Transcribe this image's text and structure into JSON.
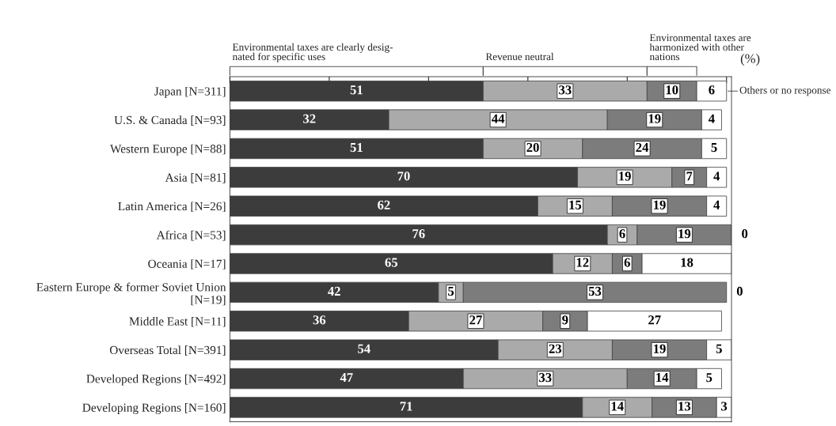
{
  "chart_data": {
    "type": "bar",
    "orientation": "horizontal",
    "stacked": true,
    "data_labels": true,
    "legend": false,
    "grid": false,
    "tick_labels": "y",
    "categories": [
      "Japan [N=311]",
      "U.S. & Canada [N=93]",
      "Western Europe [N=88]",
      "Asia [N=81]",
      "Latin America [N=26]",
      "Africa [N=53]",
      "Oceania [N=17]",
      "Eastern Europe & former Soviet Union\n[N=19]",
      "Middle East [N=11]",
      "Overseas Total [N=391]",
      "Developed Regions [N=492]",
      "Developing Regions [N=160]"
    ],
    "series": [
      {
        "name": "Environmental taxes are clearly desig-\nnated for specific uses",
        "color": "#3c3c3c",
        "values": [
          51,
          32,
          51,
          70,
          62,
          76,
          65,
          42,
          36,
          54,
          47,
          71
        ]
      },
      {
        "name": "Revenue neutral",
        "color": "#aaaaaa",
        "values": [
          33,
          44,
          20,
          19,
          15,
          6,
          12,
          5,
          27,
          23,
          33,
          14
        ]
      },
      {
        "name": "Environmental taxes are\nharmonized with other\nnations",
        "color": "#7c7c7c",
        "values": [
          10,
          19,
          24,
          7,
          19,
          19,
          6,
          53,
          9,
          19,
          14,
          13
        ]
      },
      {
        "name": "Others or no response",
        "color": "#ffffff",
        "values": [
          6,
          4,
          5,
          4,
          4,
          0,
          18,
          0,
          27,
          5,
          5,
          3
        ]
      }
    ],
    "xlim": [
      0,
      101
    ],
    "xticks": [
      {
        "value": 0,
        "label": null
      },
      {
        "value": 20,
        "label": null
      },
      {
        "value": 40,
        "label": null
      },
      {
        "value": 60,
        "label": null
      },
      {
        "value": 80,
        "label": null
      },
      {
        "value": 100,
        "label": null
      }
    ],
    "annotations": [
      "(%)"
    ]
  }
}
